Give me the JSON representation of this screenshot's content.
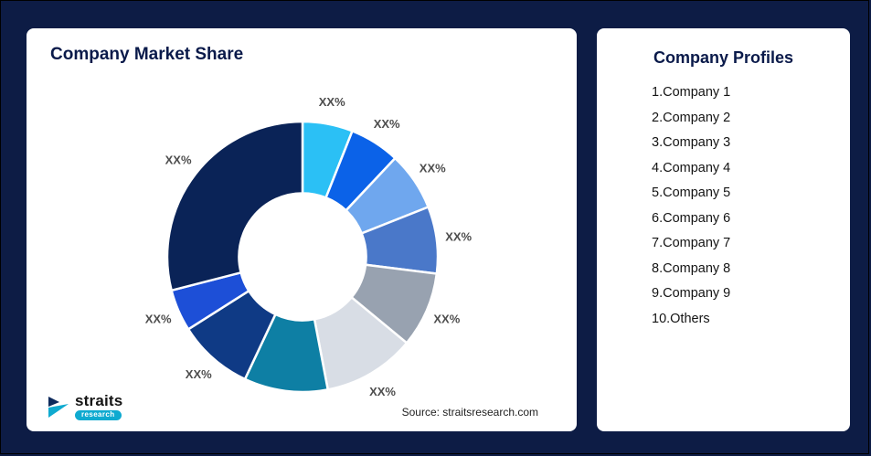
{
  "theme": {
    "background": "#0D1C45",
    "card_bg": "#FFFFFF",
    "title_color": "#0A1A4A",
    "label_color": "#4D4D4D",
    "accent_teal": "#0FAAD0"
  },
  "left_card": {
    "title": "Company Market Share",
    "source": "Source: straitsresearch.com"
  },
  "logo": {
    "name": "straits",
    "sub": "research"
  },
  "profiles": {
    "title": "Company Profiles",
    "items": [
      "1.Company 1",
      "2.Company 2",
      "3.Company 3",
      "4.Company 4",
      "5.Company 5",
      "6.Company 6",
      "7.Company 7",
      "8.Company 8",
      "9.Company 9",
      "10.Others"
    ]
  },
  "chart_data": {
    "type": "pie",
    "subtype": "donut",
    "title": "Company Market Share",
    "direction": "clockwise",
    "start_angle_deg": 0,
    "inner_radius_ratio": 0.47,
    "legend_position": "none",
    "segments": [
      {
        "name": "Company 1",
        "label": "XX%",
        "value": 6,
        "color": "#2BC0F5"
      },
      {
        "name": "Company 2",
        "label": "XX%",
        "value": 6,
        "color": "#0B62E8"
      },
      {
        "name": "Company 3",
        "label": "XX%",
        "value": 7,
        "color": "#6FA7EE"
      },
      {
        "name": "Company 4",
        "label": "XX%",
        "value": 8,
        "color": "#4A78C9"
      },
      {
        "name": "Company 5",
        "label": "XX%",
        "value": 9,
        "color": "#98A2B0"
      },
      {
        "name": "Company 6",
        "label": "XX%",
        "value": 11,
        "color": "#D8DDE5"
      },
      {
        "name": "Company 7",
        "label": "XX%",
        "value": 10,
        "color": "#0E7FA4"
      },
      {
        "name": "Company 8",
        "label": "XX%",
        "value": 9,
        "color": "#0F3A85"
      },
      {
        "name": "Company 9",
        "label": "XX%",
        "value": 5,
        "color": "#1D4FD7"
      },
      {
        "name": "Others",
        "label": "XX%",
        "value": 29,
        "color": "#0A2357"
      }
    ]
  }
}
